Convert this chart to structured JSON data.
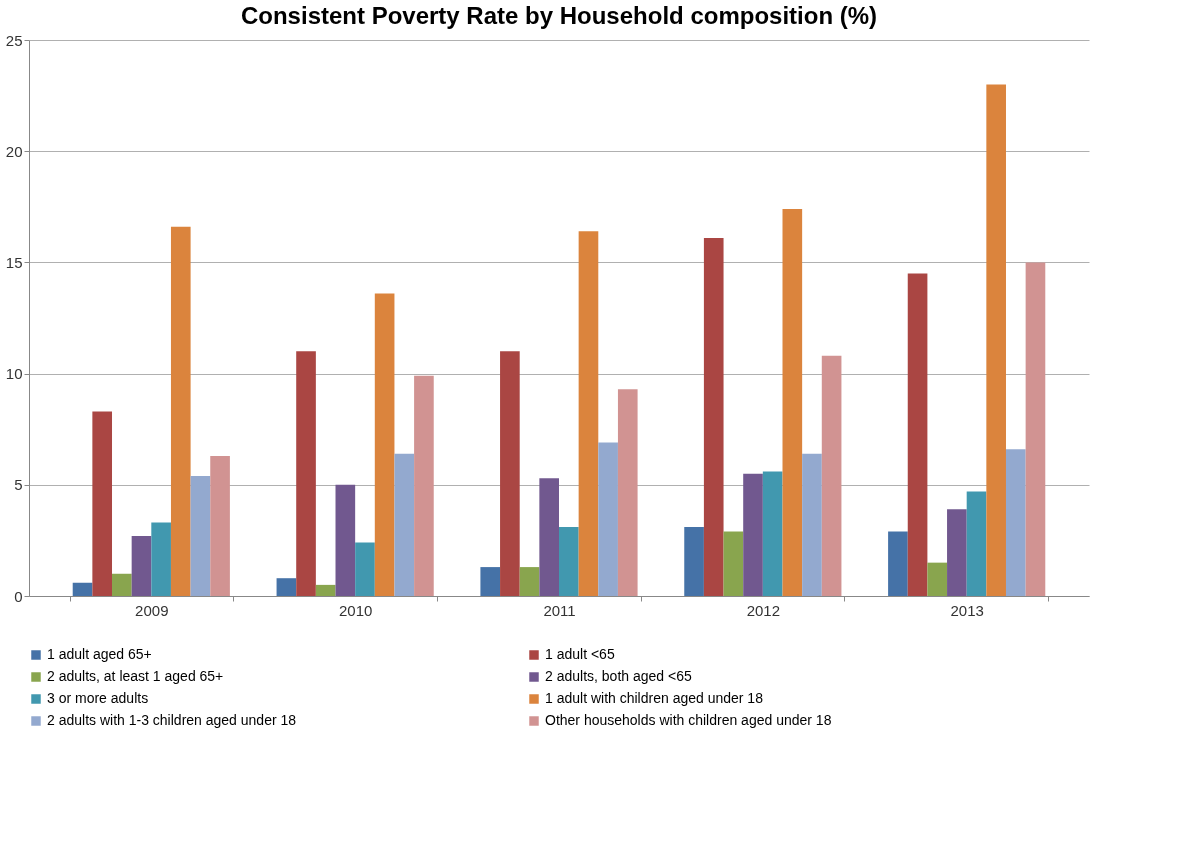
{
  "chart_data": {
    "type": "bar",
    "title": "Consistent Poverty Rate by Household composition (%)",
    "categories": [
      "2009",
      "2010",
      "2011",
      "2012",
      "2013"
    ],
    "series": [
      {
        "name": "1 adult aged 65+",
        "color": "#4572a7",
        "values": [
          0.6,
          0.8,
          1.3,
          3.1,
          2.9
        ]
      },
      {
        "name": "1 adult <65",
        "color": "#aa4643",
        "values": [
          8.3,
          11.0,
          11.0,
          16.1,
          14.5
        ]
      },
      {
        "name": "2 adults, at least 1 aged 65+",
        "color": "#89a54e",
        "values": [
          1.0,
          0.5,
          1.3,
          2.9,
          1.5
        ]
      },
      {
        "name": "2 adults, both aged <65",
        "color": "#71588f",
        "values": [
          2.7,
          5.0,
          5.3,
          5.5,
          3.9
        ]
      },
      {
        "name": "3 or more adults",
        "color": "#4198af",
        "values": [
          3.3,
          2.4,
          3.1,
          5.6,
          4.7
        ]
      },
      {
        "name": "1 adult with children aged under 18",
        "color": "#db843d",
        "values": [
          16.6,
          13.6,
          16.4,
          17.4,
          23.0
        ]
      },
      {
        "name": "2 adults with 1-3 children aged under 18",
        "color": "#93a9cf",
        "values": [
          5.4,
          6.4,
          6.9,
          6.4,
          6.6
        ]
      },
      {
        "name": "Other households with children aged under 18",
        "color": "#d19392",
        "values": [
          6.3,
          9.9,
          9.3,
          10.8,
          15.0
        ]
      }
    ],
    "ylim": [
      0,
      25
    ],
    "yticks": [
      0,
      5,
      10,
      15,
      20,
      25
    ],
    "grid": "y",
    "legend": "bottom"
  }
}
